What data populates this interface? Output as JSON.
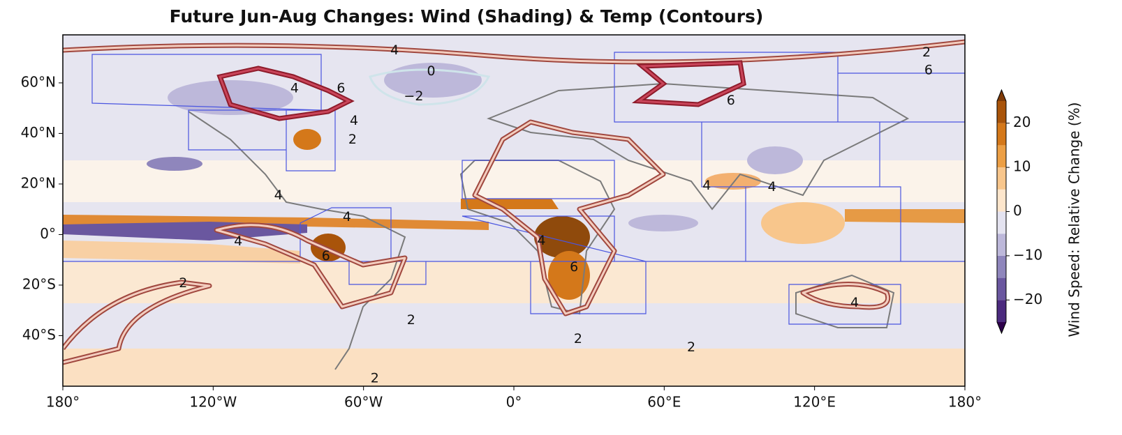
{
  "title": "Future Jun-Aug Changes: Wind (Shading) & Temp (Contours)",
  "map": {
    "xlim": [
      -180,
      180
    ],
    "ylim": [
      -60,
      79
    ],
    "xticks": [
      {
        "value": -180,
        "label": "180°"
      },
      {
        "value": -120,
        "label": "120°W"
      },
      {
        "value": -60,
        "label": "60°W"
      },
      {
        "value": 0,
        "label": "0°"
      },
      {
        "value": 60,
        "label": "60°E"
      },
      {
        "value": 120,
        "label": "120°E"
      },
      {
        "value": 180,
        "label": "180°"
      }
    ],
    "yticks": [
      {
        "value": -40,
        "label": "40°S"
      },
      {
        "value": -20,
        "label": "20°S"
      },
      {
        "value": 0,
        "label": "0°"
      },
      {
        "value": 20,
        "label": "20°N"
      },
      {
        "value": 40,
        "label": "40°N"
      },
      {
        "value": 60,
        "label": "60°N"
      }
    ],
    "contour_labels": [
      {
        "value": 4,
        "lon": -47.6,
        "lat": 72.8
      },
      {
        "value": 2,
        "lon": 164.7,
        "lat": 72
      },
      {
        "value": 6,
        "lon": 165.5,
        "lat": 65
      },
      {
        "value": 0,
        "lon": -33,
        "lat": 64.5
      },
      {
        "value": -2,
        "label": "−2",
        "lon": -40,
        "lat": 54.6
      },
      {
        "value": 4,
        "lon": -87.5,
        "lat": 57.7
      },
      {
        "value": 6,
        "lon": -69,
        "lat": 57.7
      },
      {
        "value": 6,
        "lon": 86.6,
        "lat": 53
      },
      {
        "value": 4,
        "lon": -63.8,
        "lat": 45
      },
      {
        "value": 2,
        "lon": -64.4,
        "lat": 37.5
      },
      {
        "value": 4,
        "lon": -94,
        "lat": 15.4
      },
      {
        "value": 4,
        "lon": 77,
        "lat": 19.3
      },
      {
        "value": 4,
        "lon": 103,
        "lat": 18.8
      },
      {
        "value": 4,
        "lon": -66.6,
        "lat": 6.9
      },
      {
        "value": 4,
        "lon": -110,
        "lat": -2.8
      },
      {
        "value": 4,
        "lon": 11,
        "lat": -2.5
      },
      {
        "value": 6,
        "lon": -75,
        "lat": -8.6
      },
      {
        "value": 6,
        "lon": 24,
        "lat": -13
      },
      {
        "value": 2,
        "lon": -132,
        "lat": -19.3
      },
      {
        "value": 4,
        "lon": 136,
        "lat": -27
      },
      {
        "value": 2,
        "lon": -41,
        "lat": -34
      },
      {
        "value": 2,
        "lon": 25.6,
        "lat": -41.4
      },
      {
        "value": 2,
        "lon": 70.8,
        "lat": -44.7
      },
      {
        "value": 2,
        "lon": -55.5,
        "lat": -57
      }
    ]
  },
  "colorbar": {
    "label": "Wind Speed: Relative Change (%)",
    "levels": [
      -25,
      -20,
      -15,
      -10,
      -5,
      0,
      5,
      10,
      15,
      20,
      25
    ],
    "colors": [
      "#4b2a7e",
      "#6a579f",
      "#8f86bc",
      "#bdb8da",
      "#e4e3f0",
      "#fde6cc",
      "#f8c68c",
      "#ec9f45",
      "#d4781a",
      "#a9540a"
    ],
    "extend_colors": [
      "#2d004b",
      "#7f3b08"
    ],
    "ticks": [
      {
        "value": -20,
        "label": "−20"
      },
      {
        "value": -10,
        "label": "−10"
      },
      0,
      10,
      20
    ]
  }
}
